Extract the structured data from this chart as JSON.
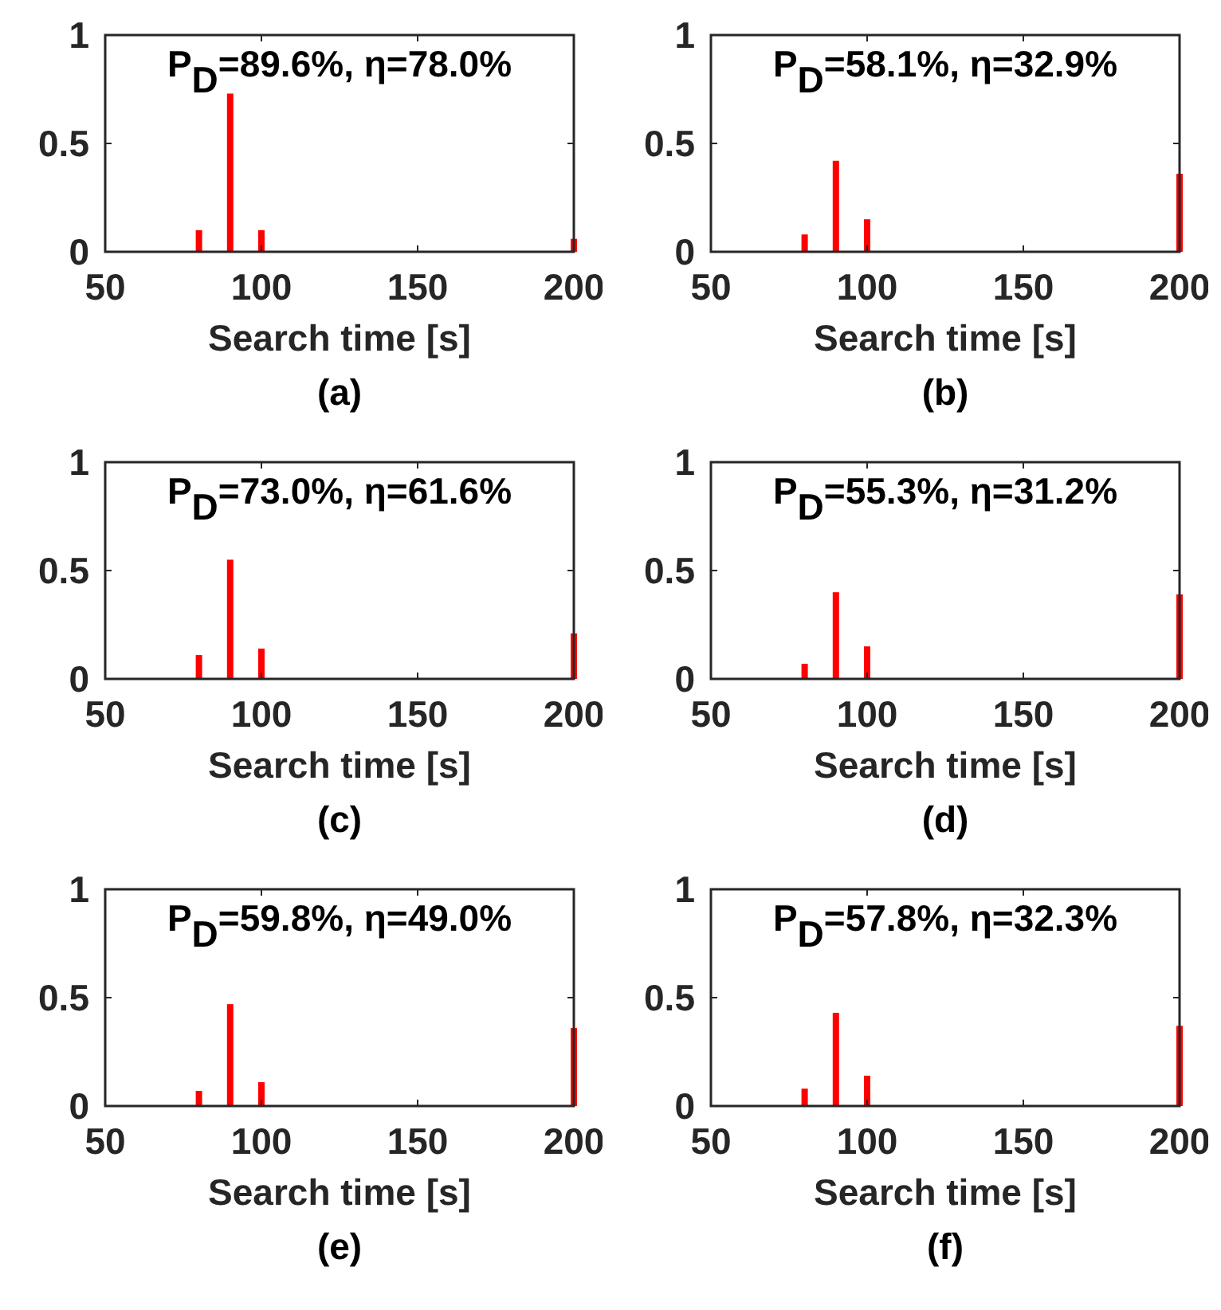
{
  "chart_data": [
    {
      "type": "bar",
      "title": "P$_{D}$=89.6%, η=78.0%",
      "xlabel": "Search time [s]",
      "annotations": [
        "(a)"
      ],
      "x": [
        80,
        90,
        100,
        200
      ],
      "series": [
        {
          "color": "#ff0000",
          "values": [
            0.1,
            0.73,
            0.1,
            0.06
          ]
        }
      ],
      "xlim": [
        50,
        200
      ],
      "xticks": [
        50,
        100,
        150,
        200
      ],
      "ylim": [
        0,
        1
      ],
      "yticks": [
        0,
        0.5,
        1
      ]
    },
    {
      "type": "bar",
      "title": "P$_{D}$=58.1%, η=32.9%",
      "xlabel": "Search time [s]",
      "annotations": [
        "(b)"
      ],
      "x": [
        80,
        90,
        100,
        200
      ],
      "series": [
        {
          "color": "#ff0000",
          "values": [
            0.08,
            0.42,
            0.15,
            0.36
          ]
        }
      ],
      "xlim": [
        50,
        200
      ],
      "xticks": [
        50,
        100,
        150,
        200
      ],
      "ylim": [
        0,
        1
      ],
      "yticks": [
        0,
        0.5,
        1
      ]
    },
    {
      "type": "bar",
      "title": "P$_{D}$=73.0%, η=61.6%",
      "xlabel": "Search time [s]",
      "annotations": [
        "(c)"
      ],
      "x": [
        80,
        90,
        100,
        200
      ],
      "series": [
        {
          "color": "#ff0000",
          "values": [
            0.11,
            0.55,
            0.14,
            0.21
          ]
        }
      ],
      "xlim": [
        50,
        200
      ],
      "xticks": [
        50,
        100,
        150,
        200
      ],
      "ylim": [
        0,
        1
      ],
      "yticks": [
        0,
        0.5,
        1
      ]
    },
    {
      "type": "bar",
      "title": "P$_{D}$=55.3%, η=31.2%",
      "xlabel": "Search time [s]",
      "annotations": [
        "(d)"
      ],
      "x": [
        80,
        90,
        100,
        200
      ],
      "series": [
        {
          "color": "#ff0000",
          "values": [
            0.07,
            0.4,
            0.15,
            0.39
          ]
        }
      ],
      "xlim": [
        50,
        200
      ],
      "xticks": [
        50,
        100,
        150,
        200
      ],
      "ylim": [
        0,
        1
      ],
      "yticks": [
        0,
        0.5,
        1
      ]
    },
    {
      "type": "bar",
      "title": "P$_{D}$=59.8%, η=49.0%",
      "xlabel": "Search time [s]",
      "annotations": [
        "(e)"
      ],
      "x": [
        80,
        90,
        100,
        200
      ],
      "series": [
        {
          "color": "#ff0000",
          "values": [
            0.07,
            0.47,
            0.11,
            0.36
          ]
        }
      ],
      "xlim": [
        50,
        200
      ],
      "xticks": [
        50,
        100,
        150,
        200
      ],
      "ylim": [
        0,
        1
      ],
      "yticks": [
        0,
        0.5,
        1
      ]
    },
    {
      "type": "bar",
      "title": "P$_{D}$=57.8%, η=32.3%",
      "xlabel": "Search time [s]",
      "annotations": [
        "(f)"
      ],
      "x": [
        80,
        90,
        100,
        200
      ],
      "series": [
        {
          "color": "#ff0000",
          "values": [
            0.08,
            0.43,
            0.14,
            0.37
          ]
        }
      ],
      "xlim": [
        50,
        200
      ],
      "xticks": [
        50,
        100,
        150,
        200
      ],
      "ylim": [
        0,
        1
      ],
      "yticks": [
        0,
        0.5,
        1
      ]
    }
  ]
}
